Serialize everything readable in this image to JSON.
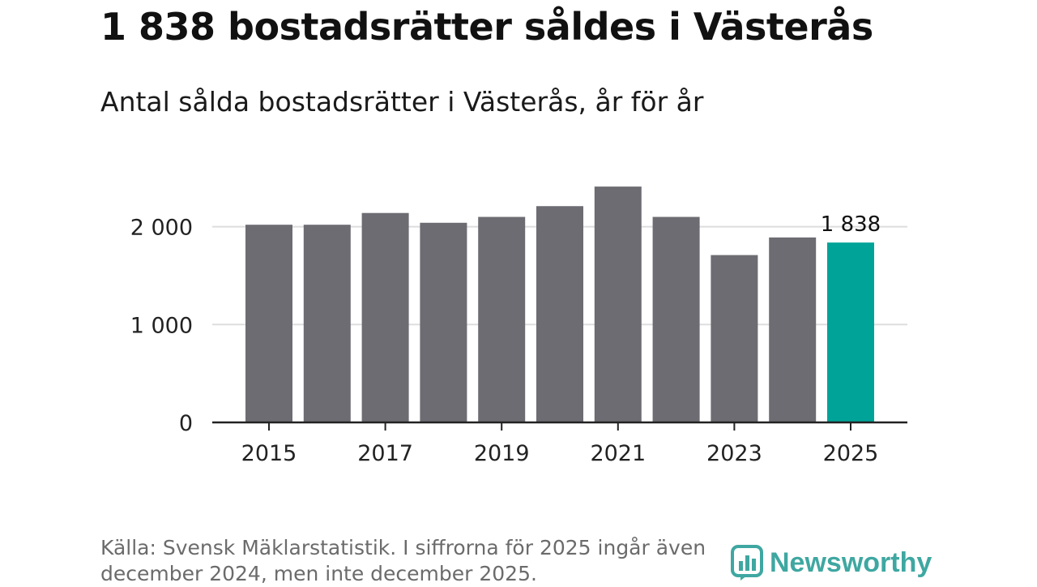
{
  "chart_data": {
    "type": "bar",
    "title": "1 838 bostadsrätter såldes i Västerås",
    "subtitle": "Antal sålda bostadsrätter i Västerås, år för år",
    "categories": [
      "2015",
      "2016",
      "2017",
      "2018",
      "2019",
      "2020",
      "2021",
      "2022",
      "2023",
      "2024",
      "2025"
    ],
    "values": [
      2020,
      2020,
      2140,
      2040,
      2100,
      2210,
      2410,
      2100,
      1710,
      1890,
      1838
    ],
    "ylim": [
      0,
      2400
    ],
    "yticks": [
      0,
      1000,
      2000
    ],
    "ytick_labels": [
      "0",
      "1 000",
      "2 000"
    ],
    "xtick_labels": [
      "2015",
      "2017",
      "2019",
      "2021",
      "2023",
      "2025"
    ],
    "highlight_index": 10,
    "highlight_label": "1 838",
    "bar_color": "#6d6c72",
    "highlight_color": "#00a398",
    "grid_color": "#dddddd",
    "xlabel": "",
    "ylabel": ""
  },
  "source_text": "Källa: Svensk Mäklarstatistik. I siffrorna för 2025 ingår även december 2024, men inte december 2025.",
  "logo": {
    "text": "Newsworthy",
    "icon": "newsworthy-logo-icon"
  }
}
